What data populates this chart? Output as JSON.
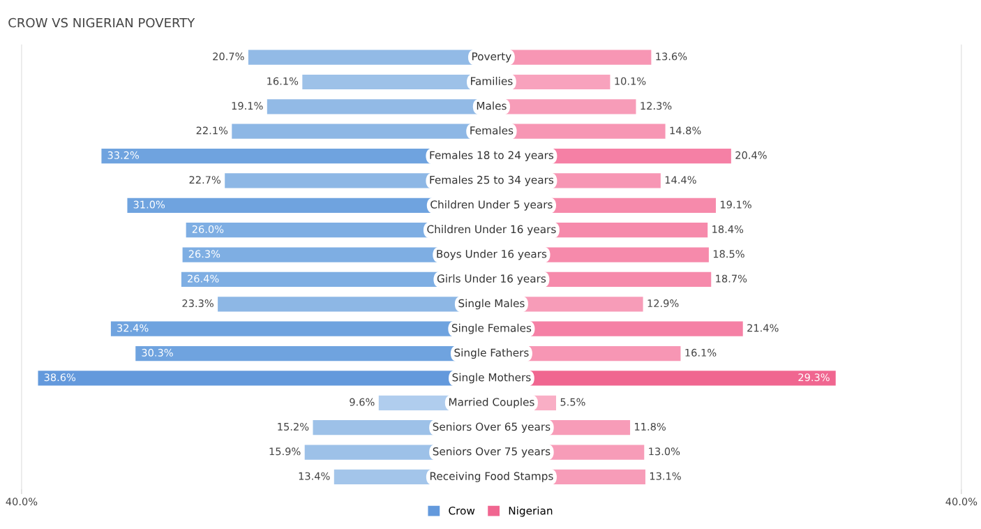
{
  "chart_data": [
    {
      "type": "bar",
      "orientation": "horizontal",
      "title": "CROW VS NIGERIAN POVERTY",
      "categories": [
        "Poverty",
        "Families",
        "Males",
        "Females",
        "Females 18 to 24 years",
        "Females 25 to 34 years",
        "Children Under 5 years",
        "Children Under 16 years",
        "Boys Under 16 years",
        "Girls Under 16 years",
        "Single Males",
        "Single Females",
        "Single Fathers",
        "Single Mothers",
        "Married Couples",
        "Seniors Over 65 years",
        "Seniors Over 75 years",
        "Receiving Food Stamps"
      ],
      "series": [
        {
          "name": "Crow",
          "color": "#6399dc",
          "values": [
            20.7,
            16.1,
            19.1,
            22.1,
            33.2,
            22.7,
            31.0,
            26.0,
            26.3,
            26.4,
            23.3,
            32.4,
            30.3,
            38.6,
            9.6,
            15.2,
            15.9,
            13.4
          ],
          "colors": [
            "#92bae6",
            "#9dc1e8",
            "#92bae6",
            "#8db7e5",
            "#6fa3df",
            "#8db7e5",
            "#6fa3df",
            "#7eaee3",
            "#7eaee3",
            "#7eaee3",
            "#8db7e5",
            "#6fa3df",
            "#6fa3df",
            "#6399dc",
            "#b0cdee",
            "#9dc1e8",
            "#9dc1e8",
            "#a3c5ea"
          ],
          "value_labels": [
            "20.7%",
            "16.1%",
            "19.1%",
            "22.1%",
            "33.2%",
            "22.7%",
            "31.0%",
            "26.0%",
            "26.3%",
            "26.4%",
            "23.3%",
            "32.4%",
            "30.3%",
            "38.6%",
            "9.6%",
            "15.2%",
            "15.9%",
            "13.4%"
          ]
        }
      ],
      "xlim": [
        40,
        0
      ],
      "xticks": [
        {
          "value": 40,
          "label": "40.0%"
        }
      ],
      "tick_labels": "x",
      "grid": false,
      "legend": "bottom"
    },
    {
      "type": "bar",
      "orientation": "horizontal",
      "categories": [
        null,
        null,
        null,
        null,
        null,
        null,
        null,
        null,
        null,
        null,
        null,
        null,
        null,
        null,
        null,
        null,
        null,
        null
      ],
      "series": [
        {
          "name": "Nigerian",
          "color": "#f06690",
          "values": [
            13.6,
            10.1,
            12.3,
            14.8,
            20.4,
            14.4,
            19.1,
            18.4,
            18.5,
            18.7,
            12.9,
            21.4,
            16.1,
            29.3,
            5.5,
            11.8,
            13.0,
            13.1
          ],
          "colors": [
            "#f796b4",
            "#f8a2bd",
            "#f79cb8",
            "#f796b4",
            "#f580a5",
            "#f796b4",
            "#f68aab",
            "#f68aab",
            "#f68aab",
            "#f68aab",
            "#f79cb8",
            "#f580a5",
            "#f796b4",
            "#f06690",
            "#f9aec5",
            "#f79cb8",
            "#f79cb8",
            "#f79cb8"
          ],
          "value_labels": [
            "13.6%",
            "10.1%",
            "12.3%",
            "14.8%",
            "20.4%",
            "14.4%",
            "19.1%",
            "18.4%",
            "18.5%",
            "18.7%",
            "12.9%",
            "21.4%",
            "16.1%",
            "29.3%",
            "5.5%",
            "11.8%",
            "13.0%",
            "13.1%"
          ]
        }
      ],
      "xlim": [
        0,
        40
      ],
      "xticks": [
        {
          "value": 40,
          "label": "40.0%"
        }
      ],
      "tick_labels": "x",
      "grid": false,
      "legend": "bottom"
    }
  ]
}
